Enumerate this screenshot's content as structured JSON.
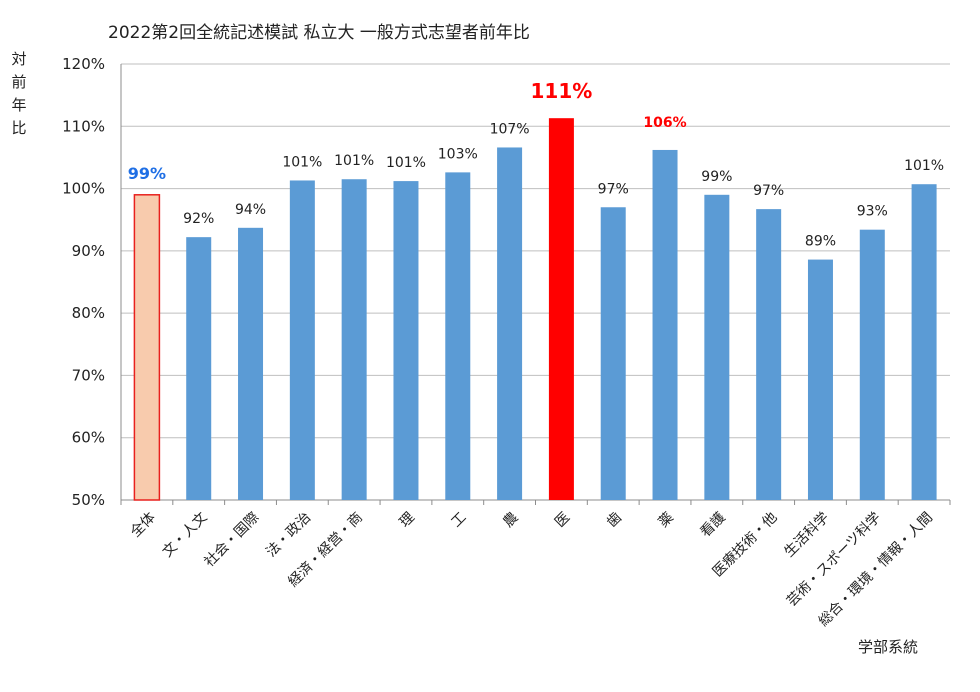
{
  "chart_data": {
    "type": "bar",
    "title": "2022第2回全統記述模試 私立大 一般方式志望者前年比",
    "ylabel": "対前年比",
    "xlabel": "学部系統",
    "ylim": [
      50,
      120
    ],
    "yticks": [
      "50%",
      "60%",
      "70%",
      "80%",
      "90%",
      "100%",
      "110%",
      "120%"
    ],
    "grid": true,
    "categories": [
      "全体",
      "文・人文",
      "社会・国際",
      "法・政治",
      "経済・経営・商",
      "理",
      "工",
      "農",
      "医",
      "歯",
      "薬",
      "看護",
      "医療技術・他",
      "生活科学",
      "芸術・スポーツ科学",
      "総合・環境・情報・人間"
    ],
    "values": [
      99,
      92.2,
      93.7,
      101.3,
      101.5,
      101.2,
      102.6,
      106.6,
      111.3,
      97.0,
      106.2,
      99.0,
      96.7,
      88.6,
      93.4,
      100.7
    ],
    "data_labels": [
      "99%",
      "92%",
      "94%",
      "101%",
      "101%",
      "101%",
      "103%",
      "107%",
      "111%",
      "97%",
      "106%",
      "99%",
      "97%",
      "89%",
      "93%",
      "101%"
    ],
    "colors": {
      "default_bar": "#5b9bd5",
      "total_bar_fill": "#f8cbad",
      "total_bar_border": "#e8211e",
      "highlight_bar": "#ff0000",
      "gridline": "#bfbfbf",
      "label_blue": "#1f6fe5",
      "label_red": "#ff0000",
      "label_default": "#222222"
    },
    "bar_styles": [
      "total",
      "default",
      "default",
      "default",
      "default",
      "default",
      "default",
      "default",
      "highlight",
      "default",
      "default",
      "default",
      "default",
      "default",
      "default",
      "default"
    ],
    "label_styles": [
      "blue-bold",
      "normal",
      "normal",
      "normal",
      "normal",
      "normal",
      "normal",
      "normal",
      "red-bold-large",
      "normal",
      "red-bold",
      "normal",
      "normal",
      "normal",
      "normal",
      "normal"
    ]
  }
}
